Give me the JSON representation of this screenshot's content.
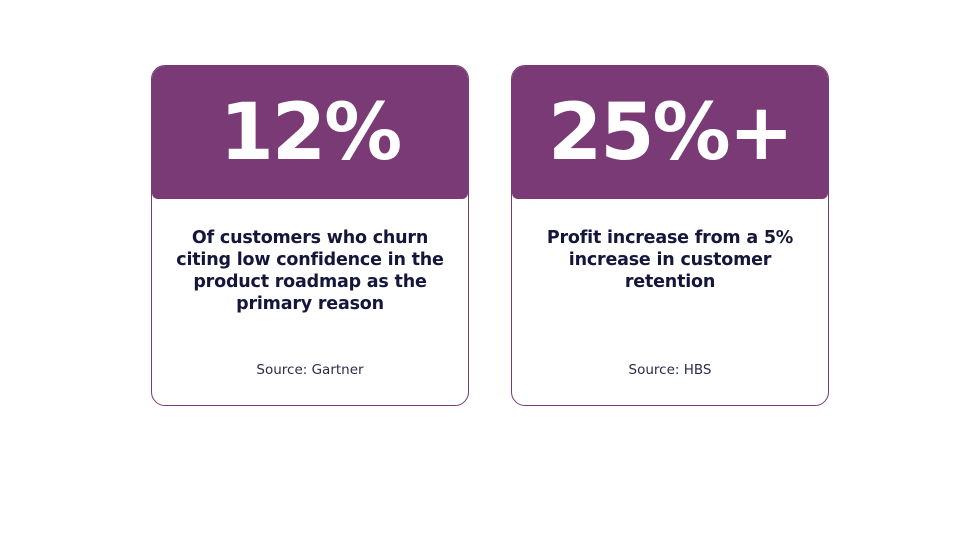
{
  "cards": [
    {
      "value": "12%",
      "description": "Of customers who churn citing low confidence in the product roadmap as the primary reason",
      "source": "Source: Gartner"
    },
    {
      "value": "25%+",
      "description": "Profit increase from a 5% increase in customer retention",
      "source": "Source: HBS"
    }
  ],
  "colors": {
    "accent": "#7a3a76",
    "text": "#14163a",
    "background": "#ffffff"
  }
}
